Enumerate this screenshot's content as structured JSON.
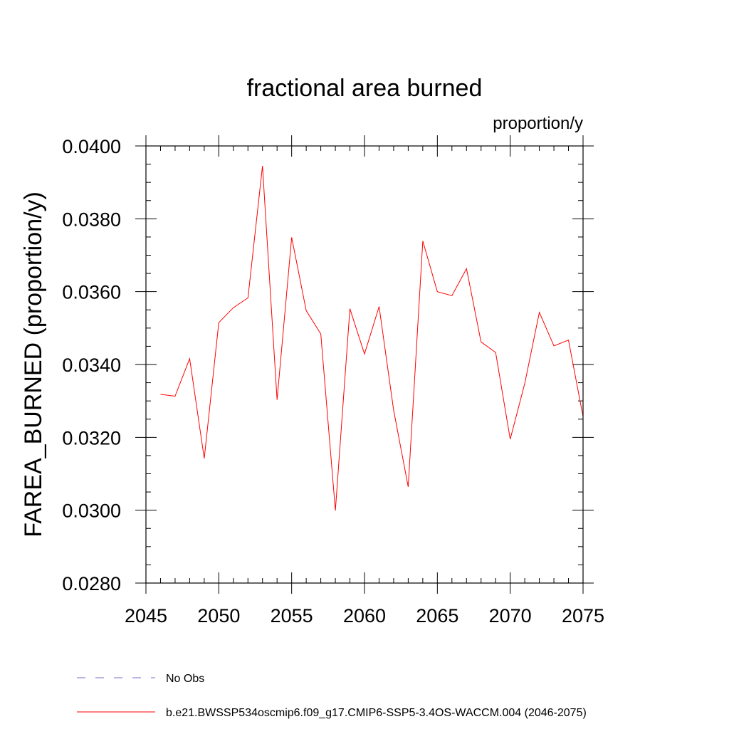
{
  "chart_data": {
    "type": "line",
    "title": "fractional area burned",
    "units_label": "proportion/y",
    "xlabel": "",
    "ylabel": "FAREA_BURNED  (proportion/y)",
    "xlim": [
      2045,
      2075
    ],
    "ylim": [
      0.028,
      0.04
    ],
    "x_ticks": [
      2045,
      2050,
      2055,
      2060,
      2065,
      2070,
      2075
    ],
    "x_tick_labels": [
      "2045",
      "2050",
      "2055",
      "2060",
      "2065",
      "2070",
      "2075"
    ],
    "y_ticks": [
      0.028,
      0.03,
      0.032,
      0.034,
      0.036,
      0.038,
      0.04
    ],
    "y_tick_labels": [
      "0.0280",
      "0.0300",
      "0.0320",
      "0.0340",
      "0.0360",
      "0.0380",
      "0.0400"
    ],
    "x_minor_step": 1,
    "y_minor_step": 0.0005,
    "grid": false,
    "legend_position": "bottom",
    "series": [
      {
        "name": "b.e21.BWSSP534oscmip6.f09_g17.CMIP6-SSP5-3.4OS-WACCM.004 (2046-2075)",
        "color": "#ff0000",
        "style": "solid",
        "x": [
          2046,
          2047,
          2048,
          2049,
          2050,
          2051,
          2052,
          2053,
          2054,
          2055,
          2056,
          2057,
          2058,
          2059,
          2060,
          2061,
          2062,
          2063,
          2064,
          2065,
          2066,
          2067,
          2068,
          2069,
          2070,
          2071,
          2072,
          2073,
          2074,
          2075
        ],
        "values": [
          0.03318,
          0.03313,
          0.03416,
          0.03142,
          0.03515,
          0.03556,
          0.03583,
          0.03945,
          0.03303,
          0.03749,
          0.03548,
          0.03484,
          0.02999,
          0.03553,
          0.03429,
          0.03559,
          0.03275,
          0.03064,
          0.03739,
          0.036,
          0.03589,
          0.03663,
          0.03462,
          0.03433,
          0.03195,
          0.03348,
          0.03543,
          0.03451,
          0.03467,
          0.03257
        ]
      }
    ],
    "legend": [
      {
        "label": "No Obs",
        "color": "#7b68c8",
        "style": "dashed"
      },
      {
        "label": "b.e21.BWSSP534oscmip6.f09_g17.CMIP6-SSP5-3.4OS-WACCM.004 (2046-2075)",
        "color": "#ff0000",
        "style": "solid"
      }
    ]
  }
}
